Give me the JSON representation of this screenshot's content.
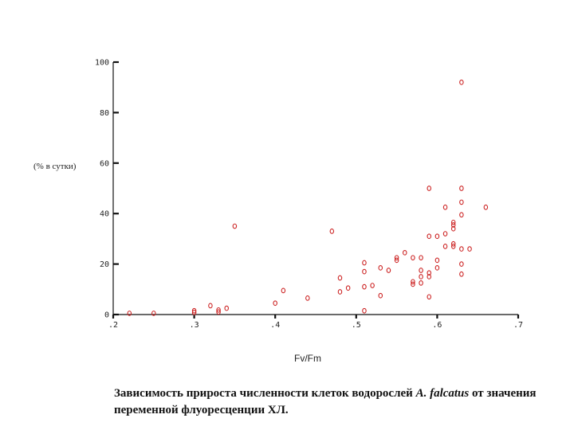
{
  "chart_data": {
    "type": "scatter",
    "ylabel": "(% в сутки)",
    "xlabel": "Fv/Fm",
    "xlim": [
      0.2,
      0.7
    ],
    "ylim": [
      0,
      100
    ],
    "x_ticks": [
      0.2,
      0.3,
      0.4,
      0.5,
      0.6,
      0.7
    ],
    "x_tick_labels": [
      ".2",
      ".3",
      ".4",
      ".5",
      ".6",
      ".7"
    ],
    "y_ticks": [
      0,
      20,
      40,
      60,
      80,
      100
    ],
    "y_tick_labels": [
      "0",
      "20",
      "40",
      "60",
      "80",
      "100"
    ],
    "grid": false,
    "marker_color": "#cc2222",
    "points": [
      {
        "x": 0.22,
        "y": 0.5
      },
      {
        "x": 0.25,
        "y": 0.5
      },
      {
        "x": 0.3,
        "y": 0.8
      },
      {
        "x": 0.3,
        "y": 1.5
      },
      {
        "x": 0.32,
        "y": 3.5
      },
      {
        "x": 0.33,
        "y": 1.0
      },
      {
        "x": 0.33,
        "y": 1.8
      },
      {
        "x": 0.34,
        "y": 2.5
      },
      {
        "x": 0.35,
        "y": 35
      },
      {
        "x": 0.4,
        "y": 4.5
      },
      {
        "x": 0.41,
        "y": 9.5
      },
      {
        "x": 0.44,
        "y": 6.5
      },
      {
        "x": 0.47,
        "y": 33
      },
      {
        "x": 0.48,
        "y": 9
      },
      {
        "x": 0.48,
        "y": 14.5
      },
      {
        "x": 0.49,
        "y": 10.5
      },
      {
        "x": 0.51,
        "y": 1.5
      },
      {
        "x": 0.51,
        "y": 11
      },
      {
        "x": 0.51,
        "y": 17
      },
      {
        "x": 0.51,
        "y": 20.5
      },
      {
        "x": 0.52,
        "y": 11.5
      },
      {
        "x": 0.53,
        "y": 7.5
      },
      {
        "x": 0.53,
        "y": 18.5
      },
      {
        "x": 0.54,
        "y": 17.5
      },
      {
        "x": 0.55,
        "y": 21.5
      },
      {
        "x": 0.55,
        "y": 22.5
      },
      {
        "x": 0.56,
        "y": 24.5
      },
      {
        "x": 0.57,
        "y": 12
      },
      {
        "x": 0.57,
        "y": 13
      },
      {
        "x": 0.57,
        "y": 22.5
      },
      {
        "x": 0.58,
        "y": 12.5
      },
      {
        "x": 0.58,
        "y": 15
      },
      {
        "x": 0.58,
        "y": 17.5
      },
      {
        "x": 0.58,
        "y": 22.5
      },
      {
        "x": 0.59,
        "y": 7
      },
      {
        "x": 0.59,
        "y": 15
      },
      {
        "x": 0.59,
        "y": 16.5
      },
      {
        "x": 0.59,
        "y": 31
      },
      {
        "x": 0.59,
        "y": 50
      },
      {
        "x": 0.6,
        "y": 18.5
      },
      {
        "x": 0.6,
        "y": 21.5
      },
      {
        "x": 0.6,
        "y": 31
      },
      {
        "x": 0.61,
        "y": 27
      },
      {
        "x": 0.61,
        "y": 32
      },
      {
        "x": 0.61,
        "y": 42.5
      },
      {
        "x": 0.62,
        "y": 27
      },
      {
        "x": 0.62,
        "y": 28
      },
      {
        "x": 0.62,
        "y": 34
      },
      {
        "x": 0.62,
        "y": 35.5
      },
      {
        "x": 0.62,
        "y": 36.5
      },
      {
        "x": 0.63,
        "y": 16
      },
      {
        "x": 0.63,
        "y": 20
      },
      {
        "x": 0.63,
        "y": 26
      },
      {
        "x": 0.63,
        "y": 39.5
      },
      {
        "x": 0.63,
        "y": 44.5
      },
      {
        "x": 0.63,
        "y": 50
      },
      {
        "x": 0.63,
        "y": 92
      },
      {
        "x": 0.64,
        "y": 26
      },
      {
        "x": 0.66,
        "y": 42.5
      }
    ]
  },
  "caption": {
    "part1": "Зависимость прироста численности клеток водорослей ",
    "species": "A. falcatus",
    "part2": " от значения переменной флуоресценции ХЛ."
  }
}
